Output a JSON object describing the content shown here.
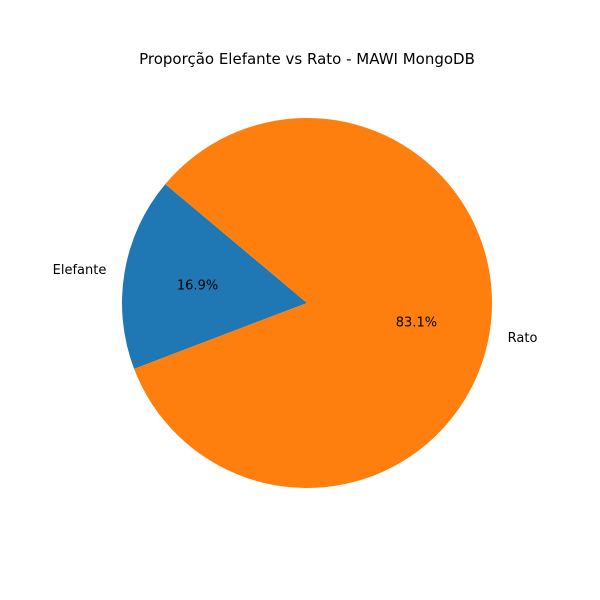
{
  "chart_data": {
    "type": "pie",
    "title": "Proporção Elefante vs Rato - MAWI MongoDB",
    "start_angle_deg": 140,
    "direction": "counterclockwise",
    "slices": [
      {
        "label": "Elefante",
        "value": 16.9,
        "pct_label": "16.9%",
        "color": "#1f77b4"
      },
      {
        "label": "Rato",
        "value": 83.1,
        "pct_label": "83.1%",
        "color": "#ff7f0e"
      }
    ]
  }
}
